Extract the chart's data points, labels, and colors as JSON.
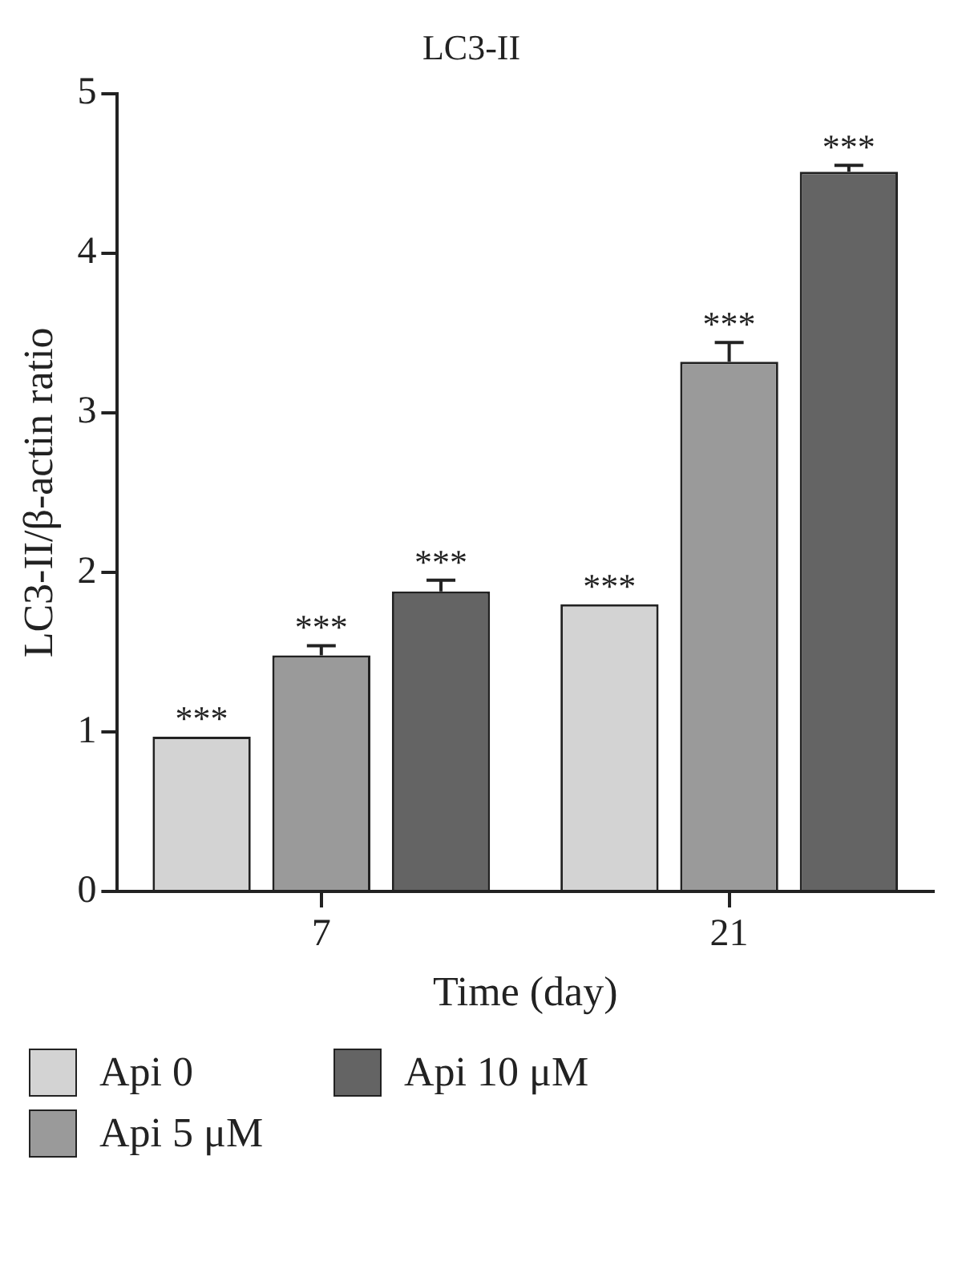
{
  "chart_data": {
    "type": "bar",
    "title": "LC3-II",
    "xlabel": "Time (day)",
    "ylabel": "LC3-II/β-actin ratio",
    "categories": [
      "7",
      "21"
    ],
    "series": [
      {
        "name": "Api 0",
        "color": "#d3d3d3",
        "values": [
          0.97,
          1.8
        ],
        "errors": [
          null,
          null
        ],
        "value_labels": [
          "***",
          "***"
        ]
      },
      {
        "name": "Api 5 μM",
        "color": "#9a9a9a",
        "values": [
          1.48,
          3.32
        ],
        "errors": [
          0.06,
          0.12
        ],
        "value_labels": [
          "***",
          "***"
        ]
      },
      {
        "name": "Api 10 μM",
        "color": "#646464",
        "values": [
          1.88,
          4.51
        ],
        "errors": [
          0.07,
          0.04
        ],
        "value_labels": [
          "***",
          "***"
        ]
      }
    ],
    "ylim": [
      0,
      5
    ],
    "yticks": [
      0,
      1,
      2,
      3,
      4,
      5
    ],
    "grid": false,
    "legend": "bottom"
  }
}
